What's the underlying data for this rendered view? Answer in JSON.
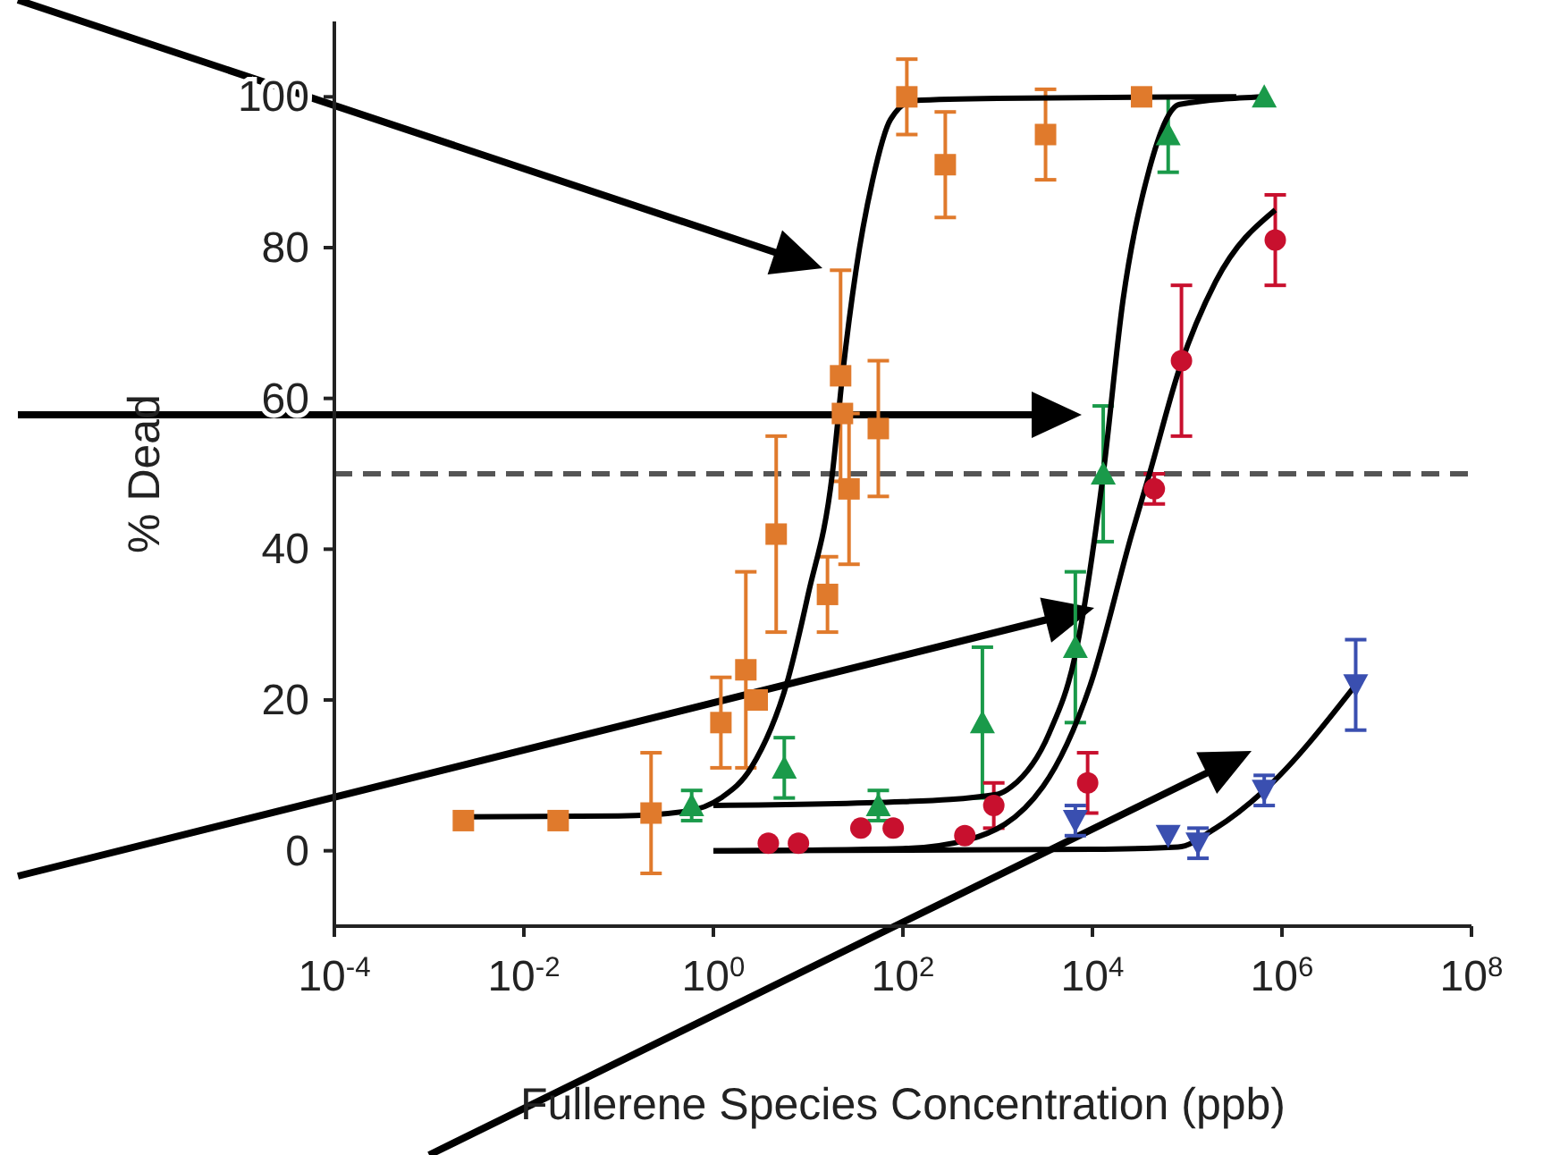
{
  "chart_data": {
    "type": "scatter",
    "xlabel": "Fullerene Species Concentration (ppb)",
    "ylabel": "% Dead",
    "log": "x",
    "xlim": [
      0.0001,
      100000000
    ],
    "ylim": [
      -10,
      110
    ],
    "xticks": [
      {
        "value": 0.0001,
        "label": "10$^{-4}$"
      },
      {
        "value": 0.01,
        "label": "10$^{-2}$"
      },
      {
        "value": 1,
        "label": "10$^{0}$"
      },
      {
        "value": 100,
        "label": "10$^{2}$"
      },
      {
        "value": 10000,
        "label": "10$^{4}$"
      },
      {
        "value": 1000000,
        "label": "10$^{6}$"
      },
      {
        "value": 100000000,
        "label": "10$^{8}$"
      }
    ],
    "yticks": [
      0,
      20,
      40,
      60,
      80,
      100
    ],
    "grid": false,
    "legend": false,
    "ref_lines": [
      {
        "axis": "y",
        "value": 50,
        "color": "#555555",
        "line_style": "dashed"
      }
    ],
    "series": [
      {
        "marker": "square",
        "color": "#e07a2c",
        "x": [
          0.0023,
          0.023,
          0.22,
          1.2,
          2.2,
          2.9,
          4.6,
          16,
          22,
          23,
          27,
          55,
          110,
          280,
          3200,
          33000
        ],
        "values": [
          4,
          4,
          5,
          17,
          24,
          20,
          42,
          34,
          63,
          58,
          48,
          56,
          100,
          91,
          95,
          100
        ],
        "errors": [
          null,
          null,
          8,
          6,
          13,
          null,
          13,
          5,
          14,
          null,
          10,
          9,
          5,
          7,
          6,
          null
        ]
      },
      {
        "marker": "triangle",
        "color": "#1a9a4a",
        "x": [
          0.59,
          5.6,
          55,
          690,
          6600,
          13000,
          63000,
          650000
        ],
        "values": [
          6,
          11,
          6,
          17,
          27,
          50,
          95,
          100
        ],
        "errors": [
          2,
          4,
          2,
          10,
          10,
          9,
          5,
          null
        ]
      },
      {
        "marker": "circle",
        "color": "#c8102e",
        "x": [
          3.8,
          7.9,
          36,
          79,
          450,
          910,
          8900,
          45000,
          87000,
          850000
        ],
        "values": [
          1,
          1,
          3,
          3,
          2,
          6,
          9,
          48,
          65,
          81
        ],
        "errors": [
          null,
          null,
          null,
          null,
          null,
          3,
          4,
          2,
          10,
          6
        ]
      },
      {
        "marker": "triangle-down",
        "color": "#3a4fb0",
        "x": [
          6600,
          63000,
          130000,
          650000,
          6000000
        ],
        "values": [
          4,
          2,
          1,
          8,
          22
        ],
        "errors": [
          2,
          null,
          2,
          2,
          6
        ]
      },
      {
        "type": "line",
        "marker": "none",
        "line_style": "solid",
        "color": "#000000",
        "x": [
          0.0023,
          0.1,
          0.5,
          1.2,
          2.5,
          6.2,
          10,
          18,
          23,
          32,
          48,
          74,
          130,
          1000,
          330000
        ],
        "values": [
          4.5,
          4.6,
          5.2,
          7,
          11,
          23,
          34,
          50,
          63,
          77,
          89,
          97,
          99.5,
          99.8,
          100
        ]
      },
      {
        "type": "line",
        "marker": "none",
        "line_style": "solid",
        "color": "#000000",
        "x": [
          1,
          100,
          1000,
          1400,
          3500,
          6600,
          13000,
          21000,
          40000,
          83000,
          650000
        ],
        "values": [
          6,
          6.5,
          7.5,
          8.5,
          15.6,
          26,
          50,
          73,
          90.5,
          99,
          100
        ]
      },
      {
        "type": "line",
        "marker": "none",
        "line_style": "solid",
        "color": "#000000",
        "x": [
          1,
          100,
          470,
          3000,
          9500,
          26000,
          40000,
          83000,
          200000,
          850000
        ],
        "values": [
          0,
          0.3,
          1.4,
          8.5,
          22,
          42,
          50,
          64,
          75.5,
          85
        ]
      },
      {
        "type": "line",
        "marker": "none",
        "line_style": "solid",
        "color": "#000000",
        "x": [
          1,
          10000,
          80000,
          200000,
          650000,
          6000000
        ],
        "values": [
          0,
          0.2,
          0.5,
          3,
          8,
          22
        ]
      }
    ]
  }
}
